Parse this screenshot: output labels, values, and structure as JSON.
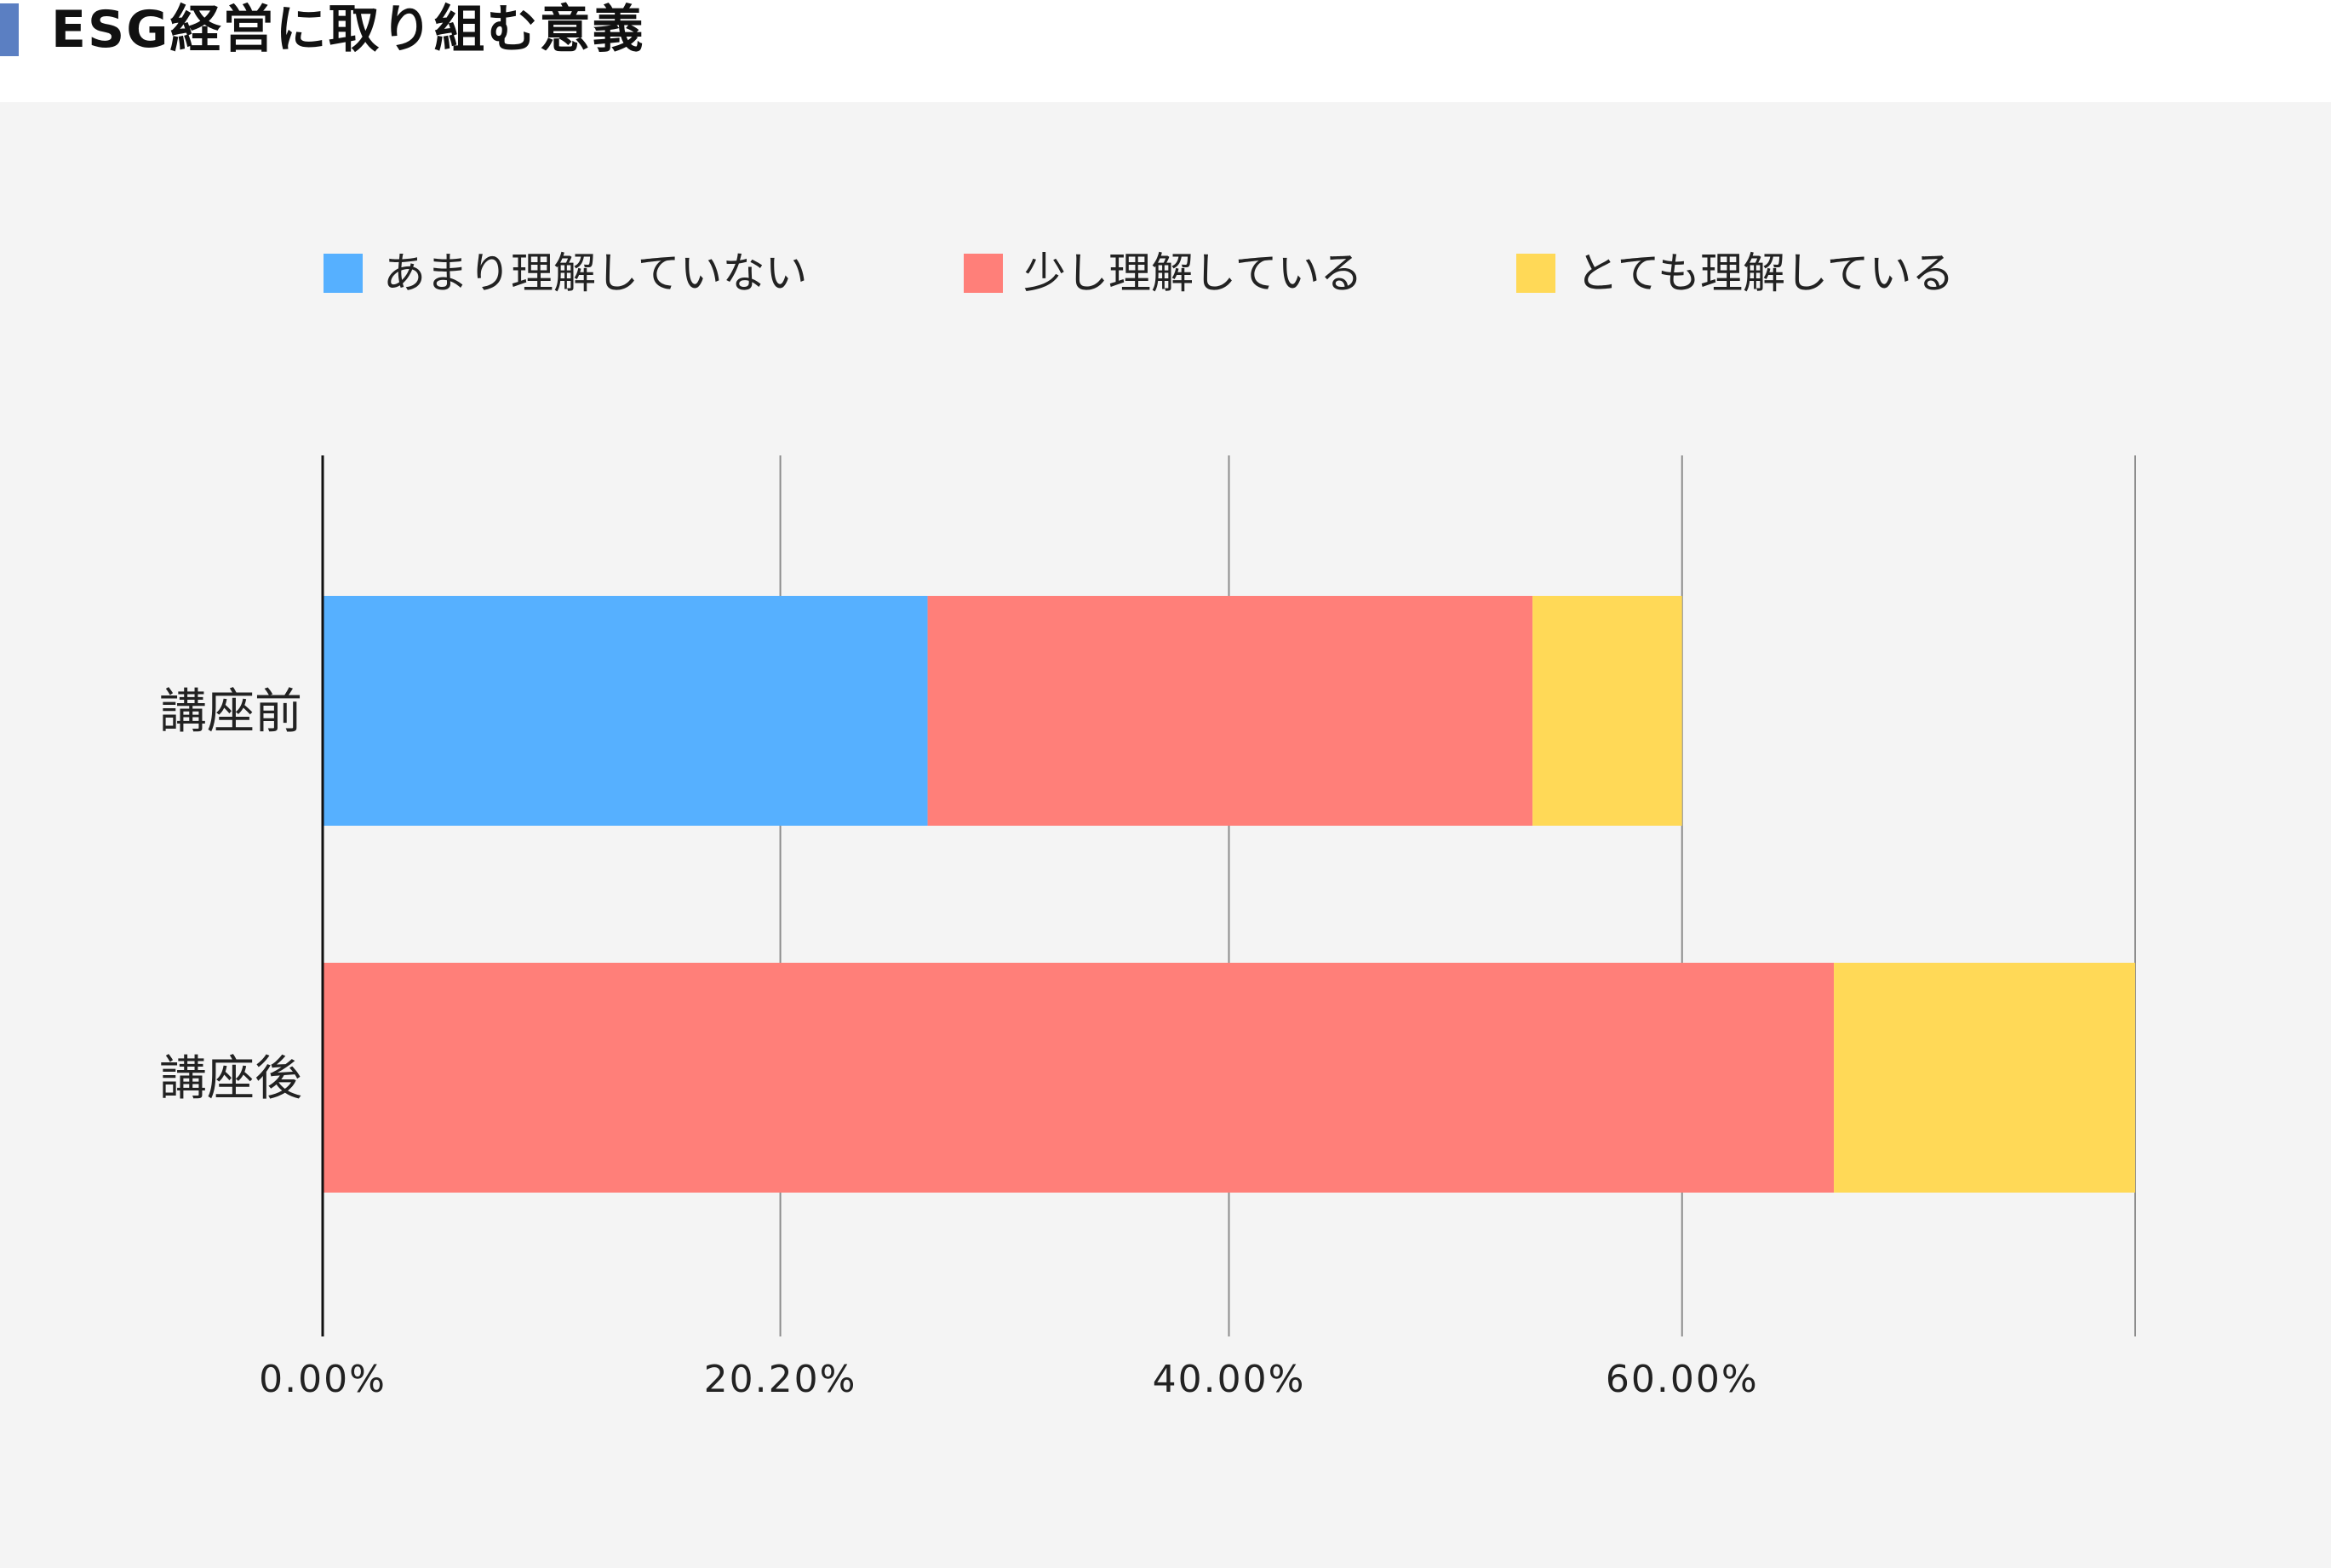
{
  "header": {
    "title": "ESG経営に取り組む意義"
  },
  "chart_data": {
    "type": "bar",
    "orientation": "horizontal",
    "stacked": true,
    "title": "",
    "xlabel": "",
    "ylabel": "",
    "categories": [
      "講座前",
      "講座後"
    ],
    "series": [
      {
        "name": "あまり理解していない",
        "color": "#56b0ff",
        "values": [
          26.7,
          0
        ]
      },
      {
        "name": "少し理解している",
        "color": "#ff7f79",
        "values": [
          26.7,
          66.7
        ]
      },
      {
        "name": "とても理解している",
        "color": "#ffd957",
        "values": [
          6.6,
          13.3
        ]
      }
    ],
    "x_ticks": [
      {
        "value": 0,
        "label": "0.00%"
      },
      {
        "value": 20.2,
        "label": "20.20%"
      },
      {
        "value": 40,
        "label": "40.00%"
      },
      {
        "value": 60,
        "label": "60.00%"
      },
      {
        "value": 80,
        "label": ""
      }
    ],
    "xlim": [
      0,
      80
    ],
    "grid": true,
    "legend_position": "top"
  }
}
